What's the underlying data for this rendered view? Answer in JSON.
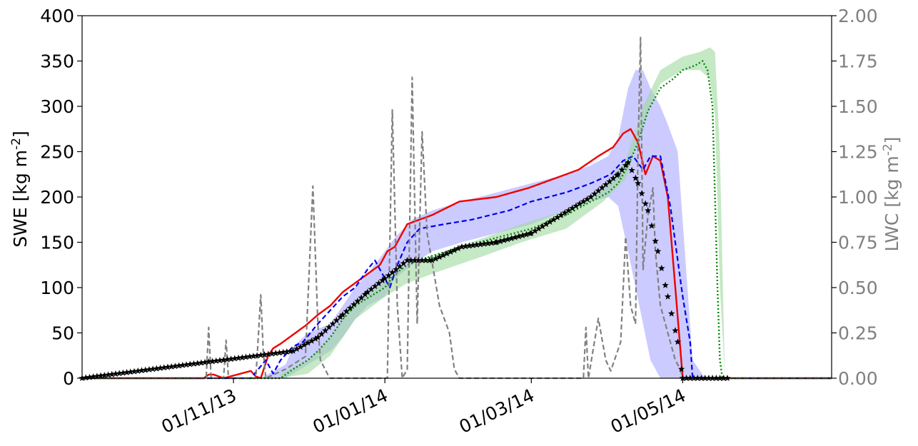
{
  "chart_data": {
    "type": "line",
    "ylabel_left": "SWE [kg m",
    "ylabel_left_exp": "-2",
    "ylabel_left_close": "]",
    "ylabel_right": "LWC  [kg m",
    "ylabel_right_exp": "-2",
    "ylabel_right_close": "]",
    "ylim_left": [
      0,
      400
    ],
    "ylim_right": [
      0,
      2.0
    ],
    "xlim": [
      "2013-09-01",
      "2014-06-30"
    ],
    "grid": false,
    "legend": "none",
    "x_ticks": [
      {
        "date": "2013-11-01",
        "label": "01/11/13"
      },
      {
        "date": "2014-01-01",
        "label": "01/01/14"
      },
      {
        "date": "2014-03-01",
        "label": "01/03/14"
      },
      {
        "date": "2014-05-01",
        "label": "01/05/14"
      }
    ],
    "y_ticks_left": [
      {
        "value": 0,
        "label": "0"
      },
      {
        "value": 50,
        "label": "50"
      },
      {
        "value": 100,
        "label": "100"
      },
      {
        "value": 150,
        "label": "150"
      },
      {
        "value": 200,
        "label": "200"
      },
      {
        "value": 250,
        "label": "250"
      },
      {
        "value": 300,
        "label": "300"
      },
      {
        "value": 350,
        "label": "350"
      },
      {
        "value": 400,
        "label": "400"
      }
    ],
    "y_ticks_right": [
      {
        "value": 0.0,
        "label": "0.00"
      },
      {
        "value": 0.25,
        "label": "0.25"
      },
      {
        "value": 0.5,
        "label": "0.50"
      },
      {
        "value": 0.75,
        "label": "0.75"
      },
      {
        "value": 1.0,
        "label": "1.00"
      },
      {
        "value": 1.25,
        "label": "1.25"
      },
      {
        "value": 1.5,
        "label": "1.50"
      },
      {
        "value": 1.75,
        "label": "1.75"
      },
      {
        "value": 2.0,
        "label": "2.00"
      }
    ],
    "bands": [
      {
        "color": "#a0a0ff",
        "opacity": 0.55,
        "axis": "left",
        "x": [
          "2013-10-20",
          "2013-11-12",
          "2013-11-22",
          "2013-11-25",
          "2013-12-01",
          "2013-12-10",
          "2013-12-15",
          "2013-12-20",
          "2013-12-25",
          "2014-01-01",
          "2014-01-05",
          "2014-01-12",
          "2014-01-20",
          "2014-02-01",
          "2014-02-15",
          "2014-03-01",
          "2014-03-15",
          "2014-03-25",
          "2014-04-01",
          "2014-04-05",
          "2014-04-09",
          "2014-04-12",
          "2014-04-15",
          "2014-04-18",
          "2014-04-22",
          "2014-04-25",
          "2014-04-29",
          "2014-05-05",
          "2014-05-10"
        ],
        "upper": [
          0,
          0,
          15,
          35,
          50,
          60,
          80,
          100,
          115,
          140,
          155,
          175,
          185,
          195,
          205,
          215,
          225,
          235,
          245,
          265,
          320,
          340,
          340,
          320,
          300,
          280,
          250,
          20,
          0
        ],
        "lower": [
          0,
          0,
          0,
          5,
          15,
          30,
          45,
          65,
          80,
          90,
          110,
          125,
          140,
          150,
          160,
          170,
          185,
          195,
          200,
          190,
          140,
          100,
          60,
          20,
          0,
          0,
          0,
          0,
          0
        ]
      },
      {
        "color": "#9fd99f",
        "opacity": 0.6,
        "axis": "left",
        "x": [
          "2013-11-20",
          "2013-12-01",
          "2013-12-10",
          "2013-12-20",
          "2014-01-01",
          "2014-01-10",
          "2014-01-25",
          "2014-02-10",
          "2014-02-25",
          "2014-03-15",
          "2014-03-30",
          "2014-04-08",
          "2014-04-15",
          "2014-04-22",
          "2014-05-01",
          "2014-05-08",
          "2014-05-12",
          "2014-05-14",
          "2014-05-16",
          "2014-05-18"
        ],
        "upper": [
          5,
          20,
          45,
          85,
          110,
          125,
          140,
          155,
          170,
          185,
          210,
          240,
          300,
          340,
          355,
          360,
          365,
          360,
          250,
          0
        ],
        "lower": [
          0,
          5,
          25,
          65,
          90,
          105,
          120,
          135,
          150,
          165,
          195,
          220,
          280,
          325,
          340,
          340,
          330,
          290,
          100,
          0
        ]
      }
    ],
    "series": [
      {
        "color": "#ee0000",
        "dash": "",
        "width": 2.4,
        "axis": "left",
        "x": [
          "2013-09-01",
          "2013-10-20",
          "2013-10-22",
          "2013-10-24",
          "2013-10-28",
          "2013-11-08",
          "2013-11-10",
          "2013-11-12",
          "2013-11-15",
          "2013-11-17",
          "2013-11-20",
          "2013-11-25",
          "2013-11-30",
          "2013-12-05",
          "2013-12-10",
          "2013-12-15",
          "2013-12-20",
          "2013-12-25",
          "2013-12-30",
          "2014-01-02",
          "2014-01-05",
          "2014-01-08",
          "2014-01-10",
          "2014-01-20",
          "2014-01-31",
          "2014-02-15",
          "2014-02-28",
          "2014-03-10",
          "2014-03-20",
          "2014-03-28",
          "2014-04-03",
          "2014-04-07",
          "2014-04-10",
          "2014-04-13",
          "2014-04-16",
          "2014-04-19",
          "2014-04-22",
          "2014-04-25",
          "2014-04-28",
          "2014-05-01",
          "2014-06-30"
        ],
        "y": [
          0,
          0,
          4,
          4,
          0,
          8,
          2,
          0,
          25,
          33,
          38,
          48,
          58,
          70,
          80,
          95,
          105,
          115,
          125,
          140,
          145,
          160,
          170,
          180,
          195,
          200,
          210,
          220,
          230,
          245,
          255,
          270,
          275,
          260,
          225,
          245,
          240,
          200,
          100,
          0,
          0
        ]
      },
      {
        "color": "#0000ee",
        "dash": "7,4",
        "width": 2.2,
        "axis": "left",
        "x": [
          "2013-09-01",
          "2013-11-08",
          "2013-11-11",
          "2013-11-14",
          "2013-11-17",
          "2013-11-20",
          "2013-11-25",
          "2013-11-29",
          "2013-12-05",
          "2013-12-10",
          "2013-12-15",
          "2013-12-20",
          "2013-12-25",
          "2013-12-28",
          "2014-01-03",
          "2014-01-06",
          "2014-01-10",
          "2014-01-15",
          "2014-01-25",
          "2014-02-05",
          "2014-02-20",
          "2014-03-01",
          "2014-03-15",
          "2014-03-25",
          "2014-04-02",
          "2014-04-07",
          "2014-04-11",
          "2014-04-15",
          "2014-04-18",
          "2014-04-22",
          "2014-04-26",
          "2014-05-01",
          "2014-05-04",
          "2014-05-05",
          "2014-06-30"
        ],
        "y": [
          0,
          0,
          10,
          20,
          5,
          20,
          35,
          40,
          60,
          75,
          90,
          100,
          120,
          130,
          100,
          125,
          150,
          165,
          170,
          175,
          185,
          195,
          205,
          215,
          225,
          240,
          245,
          230,
          245,
          245,
          190,
          90,
          40,
          0,
          0
        ]
      },
      {
        "color": "#008800",
        "dash": "2,3",
        "width": 2.4,
        "axis": "left",
        "x": [
          "2013-09-01",
          "2013-11-20",
          "2013-11-25",
          "2013-12-01",
          "2013-12-05",
          "2013-12-10",
          "2013-12-15",
          "2013-12-20",
          "2014-01-01",
          "2014-01-05",
          "2014-01-10",
          "2014-01-20",
          "2014-02-01",
          "2014-02-15",
          "2014-03-01",
          "2014-03-15",
          "2014-03-25",
          "2014-04-01",
          "2014-04-05",
          "2014-04-09",
          "2014-04-13",
          "2014-04-17",
          "2014-04-22",
          "2014-04-27",
          "2014-05-01",
          "2014-05-06",
          "2014-05-09",
          "2014-05-11",
          "2014-05-13",
          "2014-05-15",
          "2014-05-16",
          "2014-05-17",
          "2014-06-30"
        ],
        "y": [
          0,
          0,
          10,
          20,
          30,
          45,
          65,
          80,
          100,
          115,
          125,
          135,
          145,
          155,
          165,
          180,
          195,
          205,
          215,
          235,
          260,
          295,
          320,
          330,
          340,
          345,
          350,
          340,
          300,
          100,
          20,
          0,
          0
        ]
      },
      {
        "color": "#808080",
        "dash": "7,4",
        "width": 2.2,
        "axis": "right",
        "x": [
          "2013-09-01",
          "2013-10-21",
          "2013-10-22",
          "2013-10-23",
          "2013-10-28",
          "2013-10-29",
          "2013-10-30",
          "2013-11-10",
          "2013-11-12",
          "2013-11-13",
          "2013-11-14",
          "2013-11-22",
          "2013-11-30",
          "2013-12-03",
          "2013-12-05",
          "2013-12-06",
          "2013-12-09",
          "2013-12-10",
          "2014-01-02",
          "2014-01-04",
          "2014-01-06",
          "2014-01-08",
          "2014-01-10",
          "2014-01-12",
          "2014-01-14",
          "2014-01-16",
          "2014-01-18",
          "2014-01-23",
          "2014-01-27",
          "2014-01-29",
          "2014-01-31",
          "2014-03-22",
          "2014-03-23",
          "2014-03-24",
          "2014-03-28",
          "2014-03-31",
          "2014-04-02",
          "2014-04-06",
          "2014-04-08",
          "2014-04-10",
          "2014-04-12",
          "2014-04-13",
          "2014-04-14",
          "2014-04-15",
          "2014-04-17",
          "2014-04-19",
          "2014-04-20",
          "2014-04-22",
          "2014-04-24",
          "2014-04-26",
          "2014-04-28",
          "2014-04-30",
          "2014-05-01",
          "2014-06-30"
        ],
        "y": [
          0,
          0,
          0.28,
          0,
          0,
          0.21,
          0,
          0,
          0.46,
          0.15,
          0,
          0.05,
          0.12,
          1.06,
          0.3,
          0.1,
          0.02,
          0,
          0,
          1.48,
          0.4,
          0,
          0.05,
          1.66,
          0.3,
          1.36,
          0.8,
          0.4,
          0.25,
          0.05,
          0,
          0,
          0.28,
          0,
          0.33,
          0.1,
          0.04,
          0.2,
          0.78,
          0.4,
          0.3,
          1.25,
          1.88,
          0.6,
          0.9,
          1.05,
          0.7,
          0.4,
          0.3,
          0.2,
          0.1,
          0.05,
          0,
          0
        ]
      }
    ],
    "observations": {
      "color": "#000000",
      "marker": "star",
      "axis": "left",
      "x": [
        "2013-09-01",
        "2013-11-25",
        "2013-12-05",
        "2013-12-15",
        "2013-12-25",
        "2014-01-01",
        "2014-01-10",
        "2014-01-20",
        "2014-02-01",
        "2014-02-15",
        "2014-03-01",
        "2014-03-10",
        "2014-03-25",
        "2014-04-05",
        "2014-04-09",
        "2014-04-13",
        "2014-04-17",
        "2014-04-21",
        "2014-04-25",
        "2014-04-29",
        "2014-05-01",
        "2014-05-20",
        "2014-05-20"
      ],
      "y": [
        0,
        30,
        45,
        70,
        95,
        110,
        130,
        130,
        145,
        150,
        160,
        175,
        200,
        225,
        238,
        215,
        185,
        140,
        90,
        40,
        0,
        0,
        0
      ]
    }
  }
}
